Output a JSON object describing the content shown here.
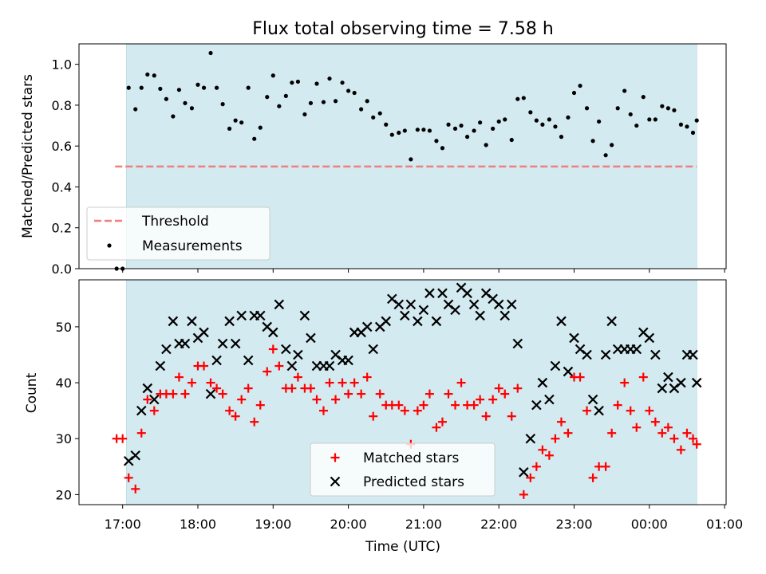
{
  "figure_title": "Flux total observing time = 7.58 h",
  "xlabel": "Time (UTC)",
  "x_tick_labels": [
    "17:00",
    "18:00",
    "19:00",
    "20:00",
    "21:00",
    "22:00",
    "23:00",
    "00:00",
    "01:00"
  ],
  "colors": {
    "shade": "#d3eaf0",
    "threshold": "#f08080",
    "measurement": "#000000",
    "matched": "#ff0000",
    "predicted": "#000000"
  },
  "chart_data": [
    {
      "type": "scatter",
      "ylabel": "Matched/Predicted stars",
      "xlim": [
        16.42,
        25.02
      ],
      "ylim": [
        0,
        1.1
      ],
      "y_ticks": [
        0.0,
        0.2,
        0.4,
        0.6,
        0.8,
        1.0
      ],
      "y_tick_labels": [
        "0.0",
        "0.2",
        "0.4",
        "0.6",
        "0.8",
        "1.0"
      ],
      "observing_window": [
        17.05,
        24.63
      ],
      "threshold": {
        "name": "Threshold",
        "value": 0.5,
        "x_range": [
          16.9,
          24.63
        ]
      },
      "legend": {
        "position": "lower-left",
        "entries": [
          "Threshold",
          "Measurements"
        ]
      },
      "series": [
        {
          "name": "Measurements",
          "x": [
            16.92,
            17.0,
            17.08,
            17.17,
            17.25,
            17.33,
            17.42,
            17.5,
            17.58,
            17.67,
            17.75,
            17.83,
            17.92,
            18.0,
            18.08,
            18.17,
            18.25,
            18.33,
            18.42,
            18.5,
            18.58,
            18.67,
            18.75,
            18.83,
            18.92,
            19.0,
            19.08,
            19.17,
            19.25,
            19.33,
            19.42,
            19.5,
            19.58,
            19.67,
            19.75,
            19.83,
            19.92,
            20.0,
            20.08,
            20.17,
            20.25,
            20.33,
            20.42,
            20.5,
            20.58,
            20.67,
            20.75,
            20.83,
            20.92,
            21.0,
            21.08,
            21.17,
            21.25,
            21.33,
            21.42,
            21.5,
            21.58,
            21.67,
            21.75,
            21.83,
            21.92,
            22.0,
            22.08,
            22.17,
            22.25,
            22.33,
            22.42,
            22.5,
            22.58,
            22.67,
            22.75,
            22.83,
            22.92,
            23.0,
            23.08,
            23.17,
            23.25,
            23.33,
            23.42,
            23.5,
            23.58,
            23.67,
            23.75,
            23.83,
            23.92,
            24.0,
            24.08,
            24.17,
            24.25,
            24.33,
            24.42,
            24.5,
            24.58,
            24.63
          ],
          "y": [
            0.0,
            0.0,
            0.885,
            0.78,
            0.885,
            0.95,
            0.945,
            0.88,
            0.83,
            0.745,
            0.875,
            0.81,
            0.785,
            0.9,
            0.885,
            1.055,
            0.885,
            0.805,
            0.685,
            0.725,
            0.715,
            0.885,
            0.635,
            0.69,
            0.84,
            0.945,
            0.795,
            0.845,
            0.91,
            0.915,
            0.755,
            0.81,
            0.905,
            0.815,
            0.93,
            0.82,
            0.91,
            0.87,
            0.86,
            0.78,
            0.82,
            0.74,
            0.76,
            0.705,
            0.655,
            0.665,
            0.675,
            0.535,
            0.68,
            0.68,
            0.675,
            0.625,
            0.59,
            0.705,
            0.685,
            0.7,
            0.645,
            0.675,
            0.715,
            0.605,
            0.685,
            0.72,
            0.73,
            0.63,
            0.83,
            0.835,
            0.765,
            0.725,
            0.705,
            0.73,
            0.695,
            0.645,
            0.74,
            0.86,
            0.895,
            0.785,
            0.625,
            0.72,
            0.555,
            0.605,
            0.785,
            0.87,
            0.755,
            0.7,
            0.84,
            0.73,
            0.73,
            0.795,
            0.785,
            0.775,
            0.705,
            0.695,
            0.665,
            0.725
          ]
        }
      ]
    },
    {
      "type": "scatter",
      "ylabel": "Count",
      "xlim": [
        16.42,
        25.02
      ],
      "ylim": [
        18.2,
        58.4
      ],
      "y_ticks": [
        20,
        30,
        40,
        50
      ],
      "y_tick_labels": [
        "20",
        "30",
        "40",
        "50"
      ],
      "observing_window": [
        17.05,
        24.63
      ],
      "legend": {
        "position": "lower-center",
        "entries": [
          "Matched stars",
          "Predicted stars"
        ]
      },
      "series": [
        {
          "name": "Matched stars",
          "x": [
            16.92,
            17.0,
            17.08,
            17.17,
            17.25,
            17.33,
            17.42,
            17.5,
            17.58,
            17.67,
            17.75,
            17.83,
            17.92,
            18.0,
            18.08,
            18.17,
            18.25,
            18.33,
            18.42,
            18.5,
            18.58,
            18.67,
            18.75,
            18.83,
            18.92,
            19.0,
            19.08,
            19.17,
            19.25,
            19.33,
            19.42,
            19.5,
            19.58,
            19.67,
            19.75,
            19.83,
            19.92,
            20.0,
            20.08,
            20.17,
            20.25,
            20.33,
            20.42,
            20.5,
            20.58,
            20.67,
            20.75,
            20.83,
            20.92,
            21.0,
            21.08,
            21.17,
            21.25,
            21.33,
            21.42,
            21.5,
            21.58,
            21.67,
            21.75,
            21.83,
            21.92,
            22.0,
            22.08,
            22.17,
            22.25,
            22.33,
            22.42,
            22.5,
            22.58,
            22.67,
            22.75,
            22.83,
            22.92,
            23.0,
            23.08,
            23.17,
            23.25,
            23.33,
            23.42,
            23.5,
            23.58,
            23.67,
            23.75,
            23.83,
            23.92,
            24.0,
            24.08,
            24.17,
            24.25,
            24.33,
            24.42,
            24.5,
            24.58,
            24.63
          ],
          "y": [
            30,
            30,
            23,
            21,
            31,
            37,
            35,
            38,
            38,
            38,
            41,
            38,
            40,
            43,
            43,
            40,
            39,
            38,
            35,
            34,
            37,
            39,
            33,
            36,
            42,
            46,
            43,
            39,
            39,
            41,
            39,
            39,
            37,
            35,
            40,
            37,
            40,
            38,
            40,
            38,
            41,
            34,
            38,
            36,
            36,
            36,
            35,
            29,
            35,
            36,
            38,
            32,
            33,
            38,
            36,
            40,
            36,
            36,
            37,
            34,
            37,
            39,
            38,
            34,
            39,
            20,
            23,
            25,
            28,
            27,
            30,
            33,
            31,
            41,
            41,
            35,
            23,
            25,
            25,
            31,
            36,
            40,
            35,
            32,
            41,
            35,
            33,
            31,
            32,
            30,
            28,
            31,
            30,
            29
          ]
        },
        {
          "name": "Predicted stars",
          "x": [
            17.08,
            17.17,
            17.25,
            17.33,
            17.42,
            17.5,
            17.58,
            17.67,
            17.75,
            17.83,
            17.92,
            18.0,
            18.08,
            18.17,
            18.25,
            18.33,
            18.42,
            18.5,
            18.58,
            18.67,
            18.75,
            18.83,
            18.92,
            19.0,
            19.08,
            19.17,
            19.25,
            19.33,
            19.42,
            19.5,
            19.58,
            19.67,
            19.75,
            19.83,
            19.92,
            20.0,
            20.08,
            20.17,
            20.25,
            20.33,
            20.42,
            20.5,
            20.58,
            20.67,
            20.75,
            20.83,
            20.92,
            21.0,
            21.08,
            21.17,
            21.25,
            21.33,
            21.42,
            21.5,
            21.58,
            21.67,
            21.75,
            21.83,
            21.92,
            22.0,
            22.08,
            22.17,
            22.25,
            22.33,
            22.42,
            22.5,
            22.58,
            22.67,
            22.75,
            22.83,
            22.92,
            23.0,
            23.08,
            23.17,
            23.25,
            23.33,
            23.42,
            23.5,
            23.58,
            23.67,
            23.75,
            23.83,
            23.92,
            24.0,
            24.08,
            24.17,
            24.25,
            24.33,
            24.42,
            24.5,
            24.58,
            24.63
          ],
          "y": [
            26,
            27,
            35,
            39,
            37,
            43,
            46,
            51,
            47,
            47,
            51,
            48,
            49,
            38,
            44,
            47,
            51,
            47,
            52,
            44,
            52,
            52,
            50,
            49,
            54,
            46,
            43,
            45,
            52,
            48,
            43,
            43,
            43,
            45,
            44,
            44,
            49,
            49,
            50,
            46,
            50,
            51,
            55,
            54,
            52,
            54,
            51,
            53,
            56,
            51,
            56,
            54,
            53,
            57,
            56,
            54,
            52,
            56,
            55,
            54,
            52,
            54,
            47,
            24,
            30,
            36,
            40,
            37,
            43,
            51,
            42,
            48,
            46,
            45,
            37,
            35,
            45,
            51,
            46,
            46,
            46,
            46,
            49,
            48,
            45,
            39,
            41,
            39,
            40,
            45,
            45,
            40
          ]
        }
      ]
    }
  ]
}
